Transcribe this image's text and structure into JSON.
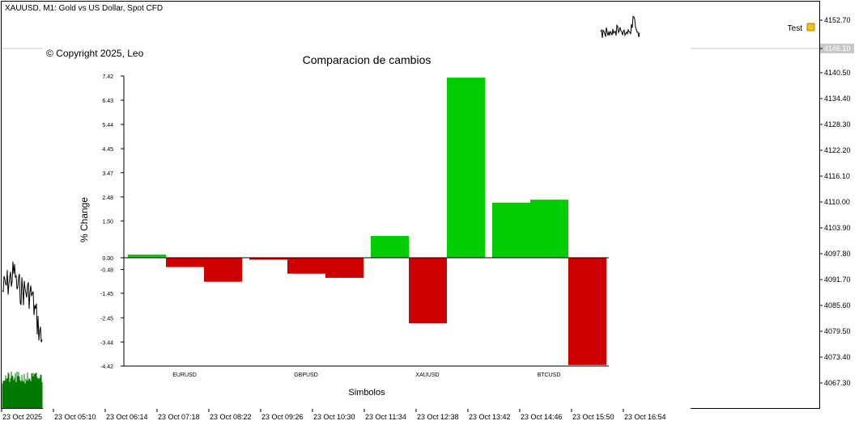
{
  "window": {
    "title": "XAUUSD, M1:  Gold vs US Dollar, Spot CFD",
    "copyright": "© Copyright 2025, Leo",
    "indicator_label": "Test",
    "current_price": "4146.10"
  },
  "price_axis": {
    "ticks": [
      "4152.70",
      "4146.10",
      "4140.50",
      "4134.40",
      "4128.30",
      "4122.20",
      "4116.10",
      "4110.00",
      "4103.90",
      "4097.80",
      "4091.70",
      "4085.60",
      "4079.50",
      "4073.40",
      "4067.30"
    ]
  },
  "time_axis": {
    "ticks": [
      "23 Oct 2025",
      "23 Oct 05:10",
      "23 Oct 06:14",
      "23 Oct 07:18",
      "23 Oct 08:22",
      "23 Oct 09:26",
      "23 Oct 10:30",
      "23 Oct 11:34",
      "23 Oct 12:38",
      "23 Oct 13:42",
      "23 Oct 14:46",
      "23 Oct 15:50",
      "23 Oct 16:54"
    ]
  },
  "colors": {
    "positive": "#00cc00",
    "negative": "#cc0000",
    "price_line": "#000000",
    "volume": "#007a00",
    "current_price_bg": "#c8c8c8",
    "indicator_icon": "#f0c020"
  },
  "chart_data": {
    "type": "bar",
    "title": "Comparacion de cambios",
    "xlabel": "Simbolos",
    "ylabel": "% Change",
    "ylim": [
      -4.42,
      7.42
    ],
    "yticks": [
      "7.42",
      "6.43",
      "5.44",
      "4.45",
      "3.47",
      "2.48",
      "1.50",
      "0.00",
      "-0.48",
      "-1.45",
      "-2.45",
      "-3.44",
      "-4.42"
    ],
    "categories": [
      "EURUSD",
      "GBPUSD",
      "XAUUSD",
      "BTCUSD"
    ],
    "bars": [
      {
        "group": 0,
        "value": 0.13
      },
      {
        "group": 0,
        "value": -0.38
      },
      {
        "group": 0,
        "value": -0.98
      },
      {
        "group": 1,
        "value": -0.08
      },
      {
        "group": 1,
        "value": -0.65
      },
      {
        "group": 1,
        "value": -0.82
      },
      {
        "group": 2,
        "value": 0.89
      },
      {
        "group": 2,
        "value": -2.68
      },
      {
        "group": 2,
        "value": 7.35
      },
      {
        "group": 3,
        "value": 2.25
      },
      {
        "group": 3,
        "value": 2.37
      },
      {
        "group": 3,
        "value": -4.38
      }
    ],
    "grid": false,
    "legend": "none"
  }
}
